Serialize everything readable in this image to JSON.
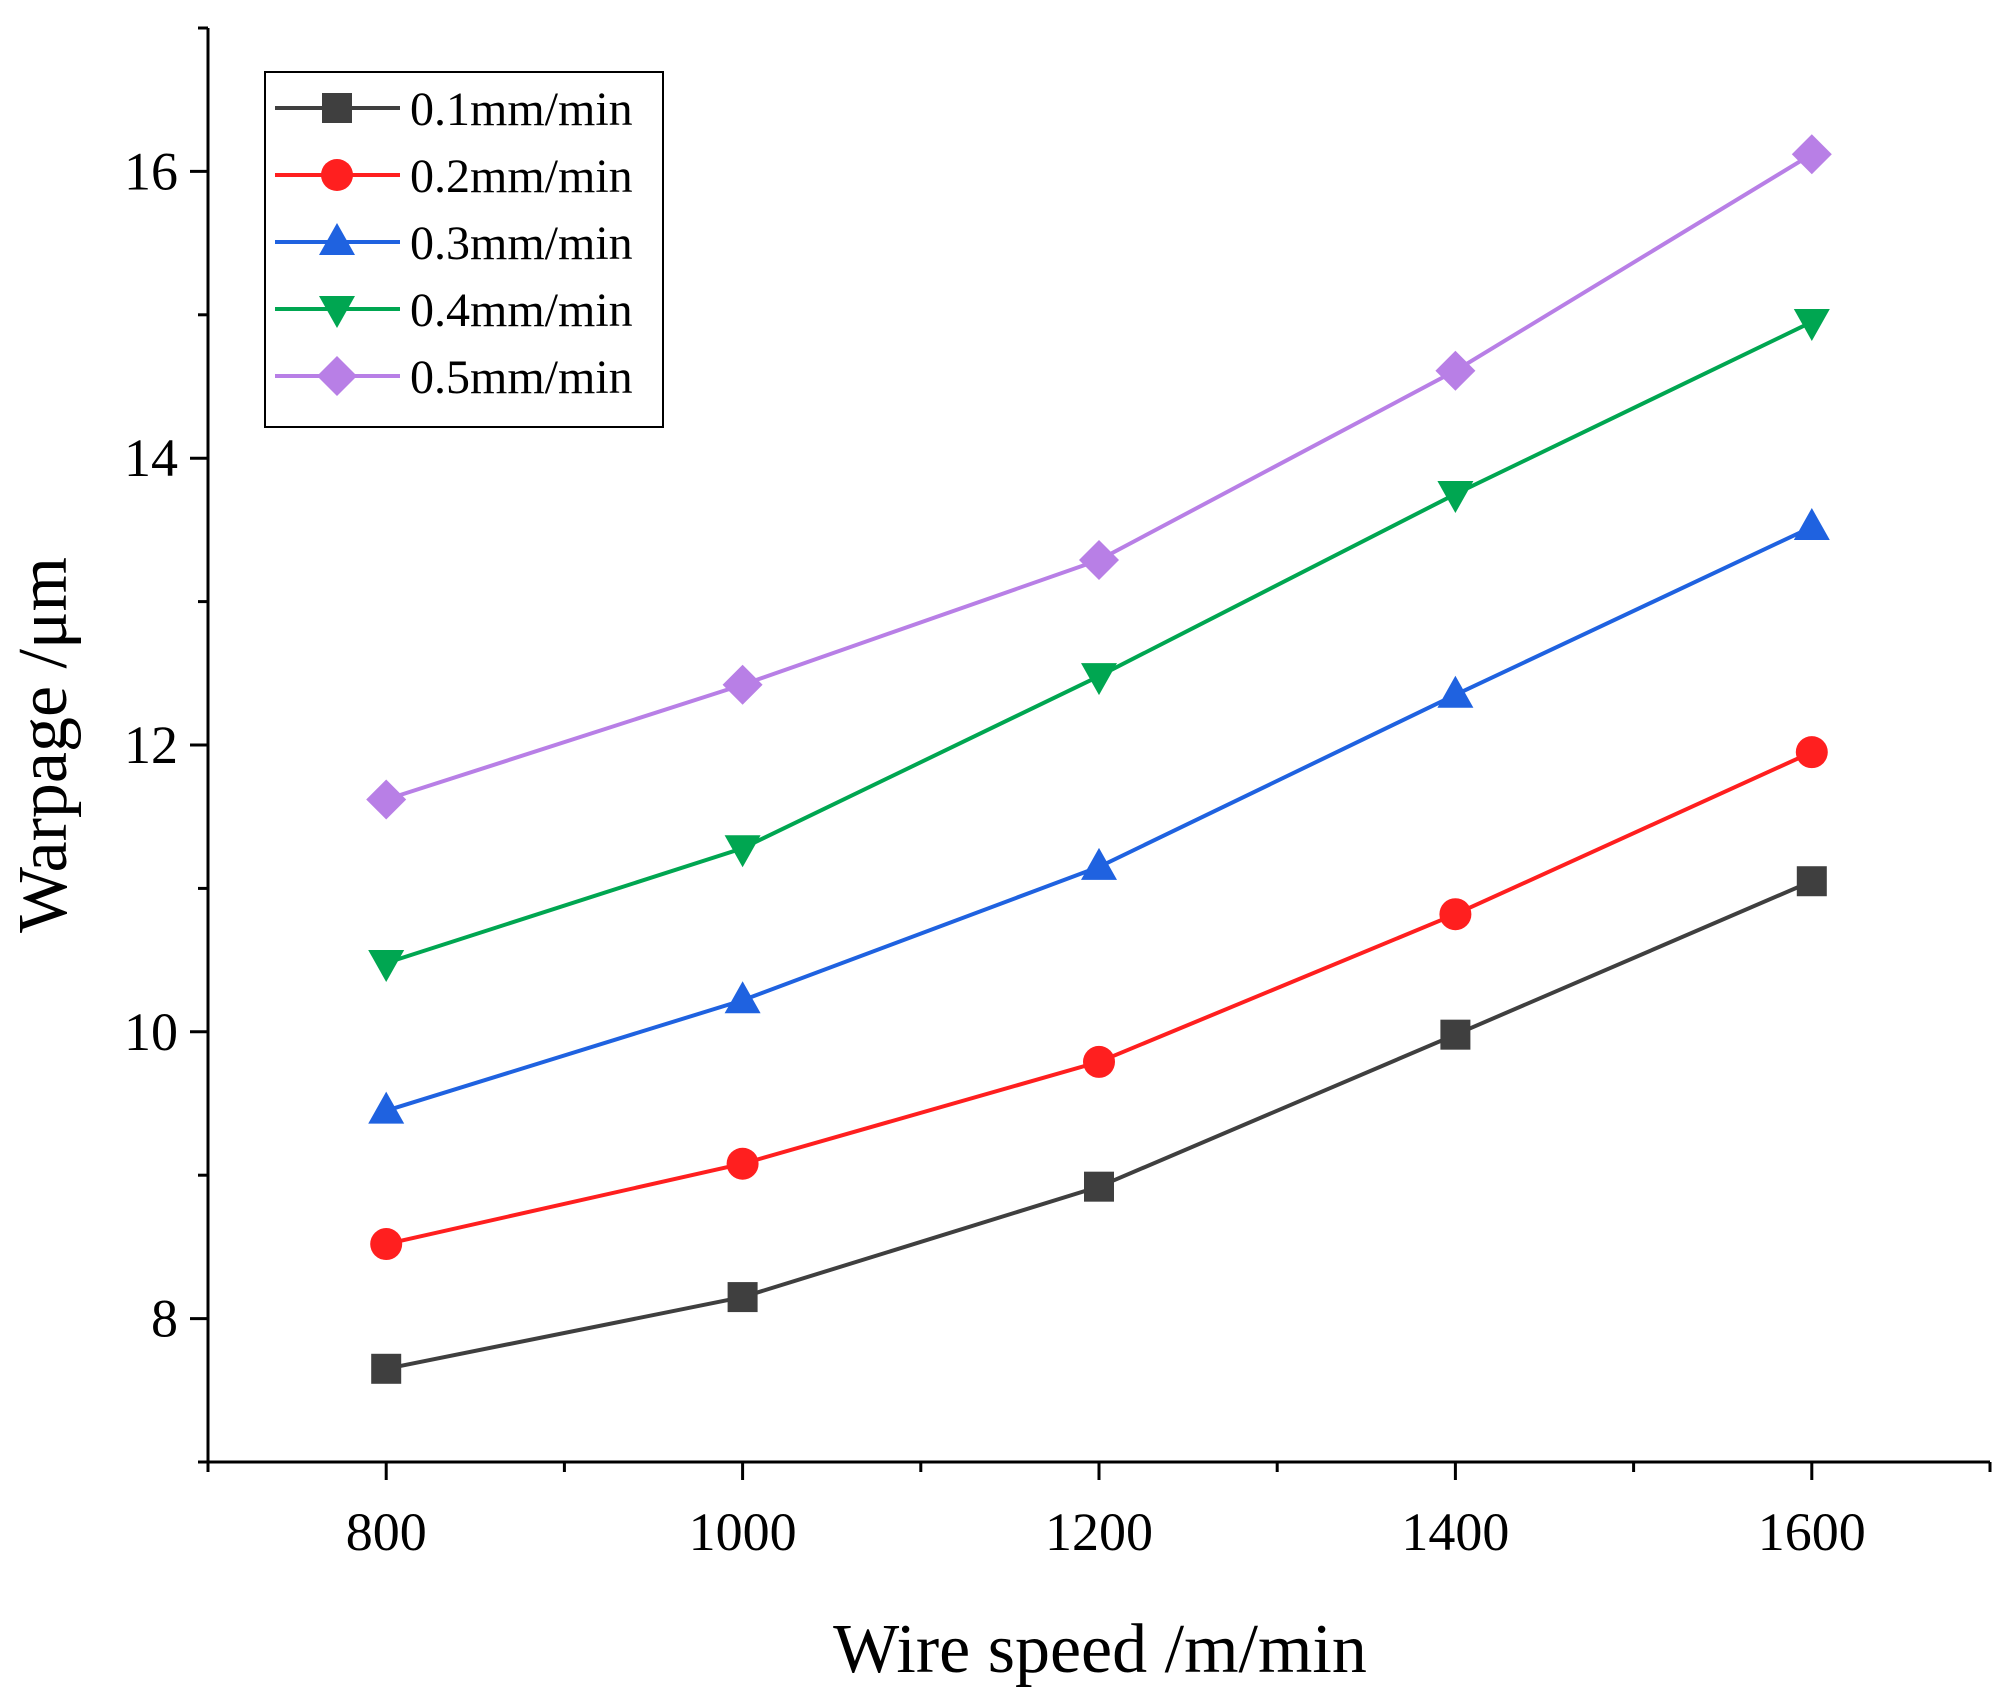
{
  "chart_data": {
    "type": "line",
    "title": "",
    "xlabel": "Wire speed /m/min",
    "ylabel": "Warpage /μm",
    "xlim": [
      700,
      1700
    ],
    "ylim": [
      7,
      17
    ],
    "x": [
      800,
      1000,
      1200,
      1400,
      1600
    ],
    "x_ticks": [
      800,
      1000,
      1200,
      1400,
      1600
    ],
    "y_ticks": [
      8,
      10,
      12,
      14,
      16
    ],
    "grid": false,
    "legend_position": "top-left",
    "series": [
      {
        "name": "0.1mm/min",
        "color": "#3f3f3f",
        "marker": "square",
        "values": [
          7.65,
          8.15,
          8.92,
          9.98,
          11.05
        ]
      },
      {
        "name": "0.2mm/min",
        "color": "#ff1f1f",
        "marker": "circle",
        "values": [
          8.52,
          9.08,
          9.79,
          10.82,
          11.95
        ]
      },
      {
        "name": "0.3mm/min",
        "color": "#1f62e0",
        "marker": "triangle-up",
        "values": [
          9.45,
          10.22,
          11.15,
          12.35,
          13.52
        ]
      },
      {
        "name": "0.4mm/min",
        "color": "#00a651",
        "marker": "triangle-down",
        "values": [
          10.48,
          11.28,
          12.48,
          13.75,
          14.95
        ]
      },
      {
        "name": "0.5mm/min",
        "color": "#b87fe6",
        "marker": "diamond",
        "values": [
          11.62,
          12.42,
          13.29,
          14.61,
          16.12
        ]
      }
    ]
  }
}
